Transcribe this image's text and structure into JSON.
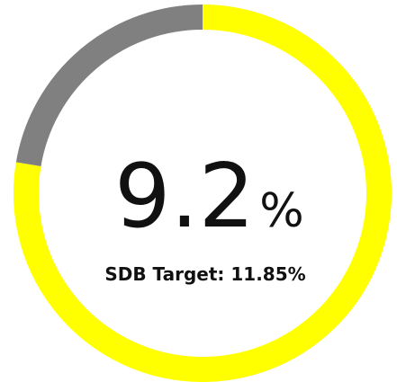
{
  "chart_data": {
    "type": "gauge",
    "value": 9.2,
    "unit": "%",
    "target": 11.85,
    "target_label": "SDB Target: 11.85%",
    "color": "#ffff00",
    "remainder_color": "#808080"
  }
}
